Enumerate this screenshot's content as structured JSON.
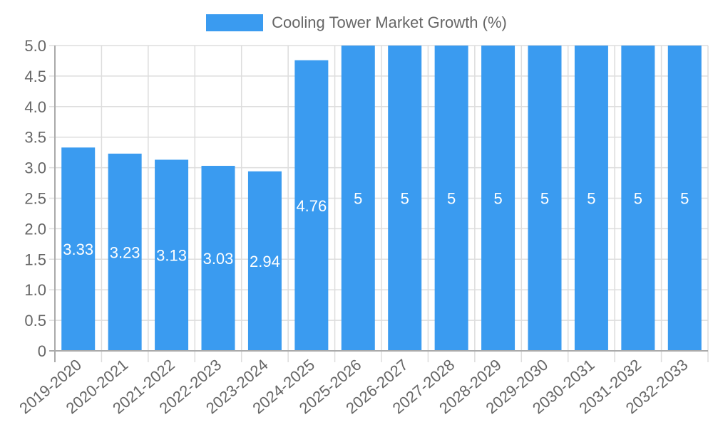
{
  "chart_data": {
    "type": "bar",
    "title": "",
    "legend": [
      {
        "label": "Cooling Tower Market Growth (%)",
        "color": "#3a9bf0"
      }
    ],
    "legend_position": "top",
    "xlabel": "",
    "ylabel": "",
    "ylim": [
      0,
      5
    ],
    "yticks": [
      "0",
      "0.5",
      "1.0",
      "1.5",
      "2.0",
      "2.5",
      "3.0",
      "3.5",
      "4.0",
      "4.5",
      "5.0"
    ],
    "grid": true,
    "categories": [
      "2019-2020",
      "2020-2021",
      "2021-2022",
      "2022-2023",
      "2023-2024",
      "2024-2025",
      "2025-2026",
      "2026-2027",
      "2027-2028",
      "2028-2029",
      "2029-2030",
      "2030-2031",
      "2031-2032",
      "2032-2033"
    ],
    "series": [
      {
        "name": "Cooling Tower Market Growth (%)",
        "color": "#3a9bf0",
        "values": [
          3.33,
          3.23,
          3.13,
          3.03,
          2.94,
          4.76,
          5,
          5,
          5,
          5,
          5,
          5,
          5,
          5
        ],
        "data_labels": [
          "3.33",
          "3.23",
          "3.13",
          "3.03",
          "2.94",
          "4.76",
          "5",
          "5",
          "5",
          "5",
          "5",
          "5",
          "5",
          "5"
        ]
      }
    ]
  }
}
